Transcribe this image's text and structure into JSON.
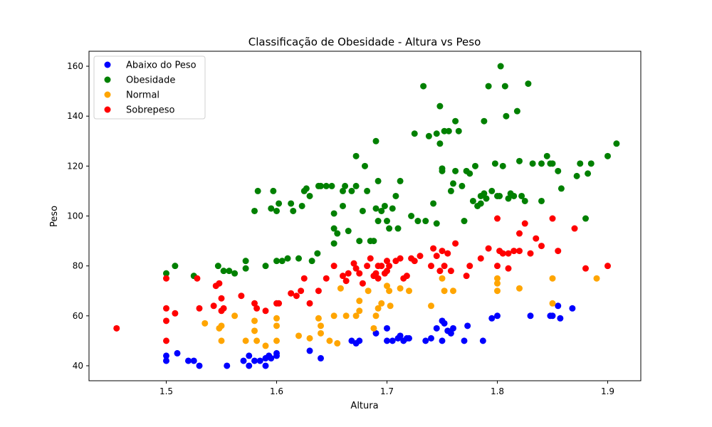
{
  "chart_data": {
    "type": "scatter",
    "title": "Classificação de Obesidade - Altura vs Peso",
    "xlabel": "Altura",
    "ylabel": "Peso",
    "xlim": [
      1.43,
      1.93
    ],
    "ylim": [
      34,
      166
    ],
    "xticks": [
      1.5,
      1.6,
      1.7,
      1.8,
      1.9
    ],
    "yticks": [
      40,
      60,
      80,
      100,
      120,
      140,
      160
    ],
    "grid": false,
    "legend_position": "top-left",
    "series": [
      {
        "name": "Abaixo do Peso",
        "color": "#0000ff",
        "points": [
          [
            1.5,
            44
          ],
          [
            1.5,
            42
          ],
          [
            1.51,
            45
          ],
          [
            1.52,
            42
          ],
          [
            1.525,
            42
          ],
          [
            1.53,
            40
          ],
          [
            1.555,
            40
          ],
          [
            1.57,
            42
          ],
          [
            1.575,
            44
          ],
          [
            1.575,
            40
          ],
          [
            1.58,
            42
          ],
          [
            1.585,
            42
          ],
          [
            1.59,
            40
          ],
          [
            1.59,
            43
          ],
          [
            1.593,
            44
          ],
          [
            1.595,
            43
          ],
          [
            1.6,
            45
          ],
          [
            1.6,
            44
          ],
          [
            1.63,
            46
          ],
          [
            1.64,
            43
          ],
          [
            1.668,
            50
          ],
          [
            1.672,
            49
          ],
          [
            1.675,
            50
          ],
          [
            1.69,
            53
          ],
          [
            1.7,
            55
          ],
          [
            1.7,
            50
          ],
          [
            1.705,
            50
          ],
          [
            1.71,
            51
          ],
          [
            1.712,
            52
          ],
          [
            1.715,
            50
          ],
          [
            1.718,
            51
          ],
          [
            1.72,
            51
          ],
          [
            1.735,
            50
          ],
          [
            1.74,
            51
          ],
          [
            1.745,
            55
          ],
          [
            1.75,
            50
          ],
          [
            1.75,
            58
          ],
          [
            1.752,
            57
          ],
          [
            1.755,
            54
          ],
          [
            1.758,
            53
          ],
          [
            1.76,
            55
          ],
          [
            1.77,
            50
          ],
          [
            1.773,
            56
          ],
          [
            1.787,
            50
          ],
          [
            1.795,
            59
          ],
          [
            1.8,
            60
          ],
          [
            1.83,
            60
          ],
          [
            1.848,
            60
          ],
          [
            1.85,
            60
          ],
          [
            1.855,
            64
          ],
          [
            1.857,
            59
          ],
          [
            1.868,
            63
          ]
        ]
      },
      {
        "name": "Obesidade",
        "color": "#008000",
        "points": [
          [
            1.5,
            77
          ],
          [
            1.508,
            80
          ],
          [
            1.525,
            76
          ],
          [
            1.547,
            80
          ],
          [
            1.552,
            78
          ],
          [
            1.557,
            78
          ],
          [
            1.562,
            77
          ],
          [
            1.572,
            79
          ],
          [
            1.572,
            82
          ],
          [
            1.58,
            102
          ],
          [
            1.583,
            110
          ],
          [
            1.59,
            80
          ],
          [
            1.595,
            103
          ],
          [
            1.597,
            110
          ],
          [
            1.6,
            102
          ],
          [
            1.6,
            82
          ],
          [
            1.602,
            105
          ],
          [
            1.605,
            82
          ],
          [
            1.61,
            83
          ],
          [
            1.613,
            105
          ],
          [
            1.615,
            102
          ],
          [
            1.62,
            83
          ],
          [
            1.623,
            104
          ],
          [
            1.625,
            110
          ],
          [
            1.627,
            111
          ],
          [
            1.63,
            108
          ],
          [
            1.632,
            82
          ],
          [
            1.637,
            85
          ],
          [
            1.638,
            112
          ],
          [
            1.64,
            112
          ],
          [
            1.645,
            112
          ],
          [
            1.65,
            112
          ],
          [
            1.652,
            101
          ],
          [
            1.652,
            95
          ],
          [
            1.652,
            89
          ],
          [
            1.655,
            93
          ],
          [
            1.66,
            104
          ],
          [
            1.66,
            110
          ],
          [
            1.662,
            112
          ],
          [
            1.665,
            94
          ],
          [
            1.668,
            110
          ],
          [
            1.672,
            112
          ],
          [
            1.672,
            124
          ],
          [
            1.675,
            90
          ],
          [
            1.678,
            102
          ],
          [
            1.68,
            120
          ],
          [
            1.682,
            110
          ],
          [
            1.685,
            90
          ],
          [
            1.688,
            90
          ],
          [
            1.69,
            130
          ],
          [
            1.69,
            103
          ],
          [
            1.692,
            98
          ],
          [
            1.692,
            114
          ],
          [
            1.695,
            102
          ],
          [
            1.698,
            104
          ],
          [
            1.7,
            98
          ],
          [
            1.702,
            95
          ],
          [
            1.705,
            103
          ],
          [
            1.708,
            108
          ],
          [
            1.71,
            95
          ],
          [
            1.712,
            114
          ],
          [
            1.722,
            100
          ],
          [
            1.725,
            133
          ],
          [
            1.728,
            98
          ],
          [
            1.733,
            152
          ],
          [
            1.735,
            98
          ],
          [
            1.738,
            132
          ],
          [
            1.742,
            105
          ],
          [
            1.745,
            133
          ],
          [
            1.745,
            97
          ],
          [
            1.748,
            129
          ],
          [
            1.748,
            144
          ],
          [
            1.75,
            118
          ],
          [
            1.75,
            119
          ],
          [
            1.752,
            134
          ],
          [
            1.756,
            134
          ],
          [
            1.758,
            110
          ],
          [
            1.76,
            113
          ],
          [
            1.762,
            138
          ],
          [
            1.762,
            118
          ],
          [
            1.765,
            134
          ],
          [
            1.768,
            112
          ],
          [
            1.77,
            98
          ],
          [
            1.772,
            118
          ],
          [
            1.775,
            117
          ],
          [
            1.778,
            106
          ],
          [
            1.78,
            120
          ],
          [
            1.782,
            104
          ],
          [
            1.785,
            105
          ],
          [
            1.785,
            108
          ],
          [
            1.788,
            109
          ],
          [
            1.788,
            138
          ],
          [
            1.79,
            107
          ],
          [
            1.792,
            152
          ],
          [
            1.795,
            110
          ],
          [
            1.798,
            121
          ],
          [
            1.8,
            108
          ],
          [
            1.802,
            108
          ],
          [
            1.803,
            160
          ],
          [
            1.805,
            120
          ],
          [
            1.807,
            152
          ],
          [
            1.808,
            140
          ],
          [
            1.81,
            107
          ],
          [
            1.812,
            109
          ],
          [
            1.815,
            108
          ],
          [
            1.818,
            142
          ],
          [
            1.82,
            122
          ],
          [
            1.822,
            108
          ],
          [
            1.825,
            106
          ],
          [
            1.828,
            153
          ],
          [
            1.832,
            121
          ],
          [
            1.84,
            106
          ],
          [
            1.84,
            121
          ],
          [
            1.845,
            124
          ],
          [
            1.848,
            121
          ],
          [
            1.85,
            121
          ],
          [
            1.855,
            118
          ],
          [
            1.858,
            111
          ],
          [
            1.872,
            116
          ],
          [
            1.875,
            121
          ],
          [
            1.88,
            99
          ],
          [
            1.882,
            117
          ],
          [
            1.885,
            121
          ],
          [
            1.9,
            124
          ],
          [
            1.908,
            129
          ]
        ]
      },
      {
        "name": "Normal",
        "color": "#ffa500",
        "points": [
          [
            1.535,
            57
          ],
          [
            1.548,
            55
          ],
          [
            1.55,
            56
          ],
          [
            1.55,
            50
          ],
          [
            1.562,
            60
          ],
          [
            1.572,
            50
          ],
          [
            1.58,
            54
          ],
          [
            1.58,
            58
          ],
          [
            1.582,
            50
          ],
          [
            1.59,
            48
          ],
          [
            1.6,
            59
          ],
          [
            1.6,
            56
          ],
          [
            1.6,
            50
          ],
          [
            1.62,
            52
          ],
          [
            1.63,
            51
          ],
          [
            1.638,
            59
          ],
          [
            1.64,
            56
          ],
          [
            1.64,
            53
          ],
          [
            1.648,
            50
          ],
          [
            1.652,
            60
          ],
          [
            1.655,
            49
          ],
          [
            1.658,
            71
          ],
          [
            1.663,
            60
          ],
          [
            1.672,
            60
          ],
          [
            1.675,
            62
          ],
          [
            1.675,
            66
          ],
          [
            1.683,
            70
          ],
          [
            1.688,
            55
          ],
          [
            1.69,
            60
          ],
          [
            1.692,
            63
          ],
          [
            1.695,
            65
          ],
          [
            1.7,
            72
          ],
          [
            1.702,
            70
          ],
          [
            1.703,
            64
          ],
          [
            1.712,
            71
          ],
          [
            1.72,
            70
          ],
          [
            1.74,
            64
          ],
          [
            1.75,
            75
          ],
          [
            1.752,
            70
          ],
          [
            1.76,
            70
          ],
          [
            1.8,
            70
          ],
          [
            1.8,
            73
          ],
          [
            1.8,
            75
          ],
          [
            1.82,
            71
          ],
          [
            1.85,
            75
          ],
          [
            1.85,
            65
          ],
          [
            1.89,
            75
          ]
        ]
      },
      {
        "name": "Sobrepeso",
        "color": "#ff0000",
        "points": [
          [
            1.455,
            55
          ],
          [
            1.5,
            75
          ],
          [
            1.5,
            63
          ],
          [
            1.5,
            58
          ],
          [
            1.5,
            50
          ],
          [
            1.508,
            61
          ],
          [
            1.528,
            75
          ],
          [
            1.53,
            63
          ],
          [
            1.543,
            64
          ],
          [
            1.545,
            72
          ],
          [
            1.548,
            73
          ],
          [
            1.55,
            67
          ],
          [
            1.55,
            62
          ],
          [
            1.552,
            63
          ],
          [
            1.568,
            68
          ],
          [
            1.58,
            65
          ],
          [
            1.582,
            63
          ],
          [
            1.59,
            62
          ],
          [
            1.6,
            65
          ],
          [
            1.602,
            65
          ],
          [
            1.613,
            69
          ],
          [
            1.618,
            68
          ],
          [
            1.622,
            70
          ],
          [
            1.625,
            75
          ],
          [
            1.63,
            65
          ],
          [
            1.638,
            70
          ],
          [
            1.645,
            75
          ],
          [
            1.652,
            80
          ],
          [
            1.66,
            76
          ],
          [
            1.663,
            74
          ],
          [
            1.665,
            77
          ],
          [
            1.67,
            81
          ],
          [
            1.672,
            79
          ],
          [
            1.675,
            77
          ],
          [
            1.678,
            73
          ],
          [
            1.682,
            80
          ],
          [
            1.685,
            83
          ],
          [
            1.688,
            76
          ],
          [
            1.69,
            77
          ],
          [
            1.692,
            75
          ],
          [
            1.692,
            80
          ],
          [
            1.695,
            80
          ],
          [
            1.698,
            77
          ],
          [
            1.7,
            78
          ],
          [
            1.7,
            82
          ],
          [
            1.702,
            80
          ],
          [
            1.708,
            82
          ],
          [
            1.712,
            83
          ],
          [
            1.715,
            75
          ],
          [
            1.718,
            76
          ],
          [
            1.722,
            83
          ],
          [
            1.725,
            82
          ],
          [
            1.73,
            84
          ],
          [
            1.74,
            80
          ],
          [
            1.742,
            87
          ],
          [
            1.745,
            84
          ],
          [
            1.748,
            78
          ],
          [
            1.75,
            86
          ],
          [
            1.752,
            80
          ],
          [
            1.755,
            85
          ],
          [
            1.758,
            78
          ],
          [
            1.762,
            89
          ],
          [
            1.772,
            76
          ],
          [
            1.775,
            80
          ],
          [
            1.785,
            83
          ],
          [
            1.792,
            87
          ],
          [
            1.8,
            99
          ],
          [
            1.8,
            80
          ],
          [
            1.802,
            86
          ],
          [
            1.805,
            85
          ],
          [
            1.81,
            85
          ],
          [
            1.81,
            79
          ],
          [
            1.815,
            86
          ],
          [
            1.82,
            93
          ],
          [
            1.82,
            86
          ],
          [
            1.825,
            97
          ],
          [
            1.83,
            85
          ],
          [
            1.835,
            91
          ],
          [
            1.84,
            88
          ],
          [
            1.85,
            99
          ],
          [
            1.855,
            86
          ],
          [
            1.87,
            95
          ],
          [
            1.88,
            79
          ],
          [
            1.9,
            80
          ]
        ]
      }
    ]
  }
}
